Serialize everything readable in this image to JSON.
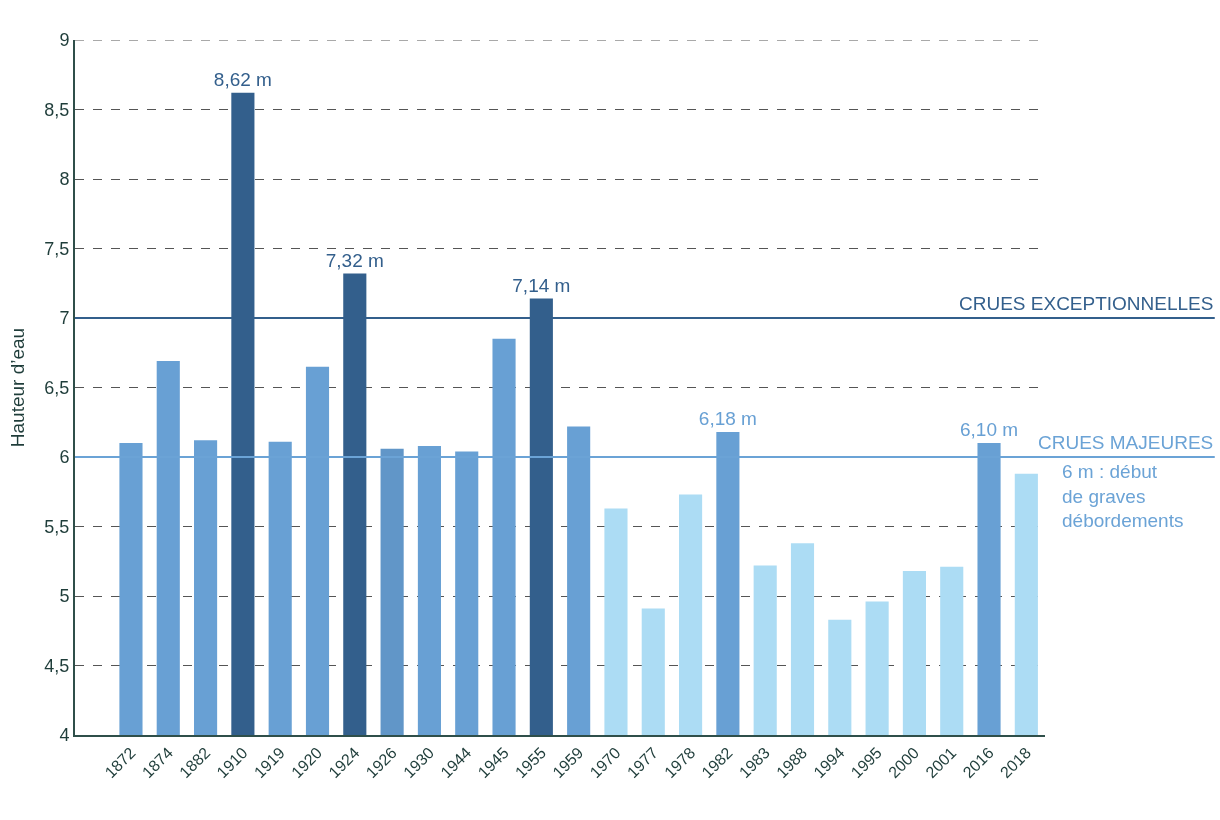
{
  "chart_data": {
    "type": "bar",
    "ylabel": "Hauteur d’eau",
    "categories": [
      "1872",
      "1874",
      "1882",
      "1910",
      "1919",
      "1920",
      "1924",
      "1926",
      "1930",
      "1944",
      "1945",
      "1955",
      "1959",
      "1970",
      "1977",
      "1978",
      "1982",
      "1983",
      "1988",
      "1994",
      "1995",
      "2000",
      "2001",
      "2016",
      "2018"
    ],
    "values": [
      6.1,
      6.69,
      6.12,
      8.62,
      6.11,
      6.65,
      7.32,
      6.06,
      6.08,
      6.04,
      6.85,
      7.14,
      6.22,
      5.63,
      4.91,
      5.73,
      6.18,
      5.22,
      5.38,
      4.83,
      4.96,
      5.18,
      5.21,
      6.1,
      5.88
    ],
    "colors": [
      "#68a0d4",
      "#68a0d4",
      "#68a0d4",
      "#335f8c",
      "#68a0d4",
      "#68a0d4",
      "#335f8c",
      "#6196c8",
      "#68a0d4",
      "#68a0d4",
      "#68a0d4",
      "#335f8c",
      "#68a0d4",
      "#acdcf4",
      "#acdcf4",
      "#acdcf4",
      "#68a0d4",
      "#acdcf4",
      "#acdcf4",
      "#acdcf4",
      "#acdcf4",
      "#acdcf4",
      "#acdcf4",
      "#68a0d4",
      "#acdcf4"
    ],
    "value_labels": [
      null,
      null,
      null,
      "8,62 m",
      null,
      null,
      "7,32 m",
      null,
      null,
      null,
      null,
      "7,14 m",
      null,
      null,
      null,
      null,
      "6,18 m",
      null,
      null,
      null,
      null,
      null,
      null,
      "6,10 m",
      null
    ],
    "ylim": [
      4,
      9
    ],
    "yticks": [
      4,
      {
        "value": 4.5,
        "label": "4,5"
      },
      5,
      {
        "value": 5.5,
        "label": "5,5"
      },
      6,
      {
        "value": 6.5,
        "label": "6,5"
      },
      7,
      {
        "value": 7.5,
        "label": "7,5"
      },
      8,
      {
        "value": 8.5,
        "label": "8,5"
      },
      9
    ],
    "grid": "y",
    "ref_lines": [
      {
        "axis": "y",
        "value": 7,
        "label": "CRUES EXCEPTIONNELLES",
        "color": "#335f8c"
      },
      {
        "axis": "y",
        "value": 6,
        "label": "CRUES MAJEURES",
        "color": "#6ba3d6"
      }
    ],
    "annotations": [
      "6 m : début\nde graves\ndébordements"
    ]
  }
}
